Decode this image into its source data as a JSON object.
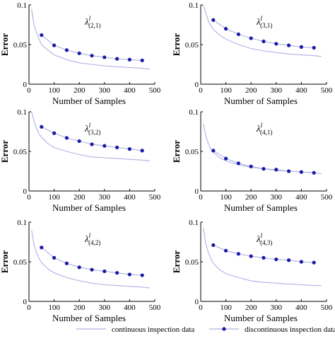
{
  "chart_data": [
    {
      "type": "line",
      "title": "λ^l(2,1)",
      "title_main": "λ",
      "title_sup": "l",
      "title_sub": "(2,1)",
      "xlabel": "Number of Samples",
      "ylabel": "Error",
      "xlim": [
        0,
        500
      ],
      "ylim": [
        0,
        0.1
      ],
      "x_ticks": [
        "0",
        "100",
        "200",
        "300",
        "400",
        "500"
      ],
      "y_ticks": [
        "0",
        "0.05",
        "0.1"
      ],
      "series": [
        {
          "name": "continuous inspection data",
          "x": [
            10,
            20,
            30,
            40,
            50,
            75,
            100,
            150,
            200,
            250,
            300,
            350,
            400,
            450,
            480
          ],
          "y": [
            0.095,
            0.075,
            0.065,
            0.057,
            0.05,
            0.043,
            0.037,
            0.031,
            0.027,
            0.025,
            0.023,
            0.022,
            0.021,
            0.02,
            0.019
          ]
        },
        {
          "name": "discontinuous inspection data",
          "x": [
            50,
            100,
            150,
            200,
            250,
            300,
            350,
            400,
            450
          ],
          "y": [
            0.062,
            0.049,
            0.043,
            0.039,
            0.036,
            0.034,
            0.032,
            0.031,
            0.03
          ]
        }
      ]
    },
    {
      "type": "line",
      "title": "λ^l(3,1)",
      "title_main": "λ",
      "title_sup": "l",
      "title_sub": "(3,1)",
      "xlabel": "Number of Samples",
      "ylabel": "Error",
      "xlim": [
        0,
        500
      ],
      "ylim": [
        0,
        0.1
      ],
      "x_ticks": [
        "0",
        "100",
        "200",
        "300",
        "400",
        "500"
      ],
      "y_ticks": [
        "0",
        "0.05",
        "0.1"
      ],
      "series": [
        {
          "name": "continuous inspection data",
          "x": [
            10,
            20,
            30,
            40,
            50,
            75,
            100,
            150,
            200,
            250,
            300,
            350,
            400,
            450,
            480
          ],
          "y": [
            0.1,
            0.09,
            0.08,
            0.074,
            0.069,
            0.062,
            0.057,
            0.05,
            0.045,
            0.042,
            0.04,
            0.038,
            0.037,
            0.036,
            0.035
          ]
        },
        {
          "name": "discontinuous inspection data",
          "x": [
            50,
            100,
            150,
            200,
            250,
            300,
            350,
            400,
            450
          ],
          "y": [
            0.081,
            0.07,
            0.063,
            0.058,
            0.054,
            0.051,
            0.049,
            0.047,
            0.046
          ]
        }
      ]
    },
    {
      "type": "line",
      "title": "λ^l(3,2)",
      "title_main": "λ",
      "title_sup": "l",
      "title_sub": "(3,2)",
      "xlabel": "Number of Samples",
      "ylabel": "Error",
      "xlim": [
        0,
        500
      ],
      "ylim": [
        0,
        0.1
      ],
      "x_ticks": [
        "0",
        "100",
        "200",
        "300",
        "400",
        "500"
      ],
      "y_ticks": [
        "0",
        "0.05",
        "0.1"
      ],
      "series": [
        {
          "name": "continuous inspection data",
          "x": [
            10,
            20,
            30,
            40,
            50,
            75,
            100,
            150,
            200,
            250,
            300,
            350,
            400,
            450,
            480
          ],
          "y": [
            0.1,
            0.088,
            0.079,
            0.072,
            0.068,
            0.06,
            0.055,
            0.05,
            0.046,
            0.043,
            0.042,
            0.041,
            0.04,
            0.039,
            0.038
          ]
        },
        {
          "name": "discontinuous inspection data",
          "x": [
            50,
            100,
            150,
            200,
            250,
            300,
            350,
            400,
            450
          ],
          "y": [
            0.081,
            0.073,
            0.067,
            0.063,
            0.059,
            0.057,
            0.055,
            0.053,
            0.051
          ]
        }
      ]
    },
    {
      "type": "line",
      "title": "λ^l(4,1)",
      "title_main": "λ",
      "title_sup": "l",
      "title_sub": "(4,1)",
      "xlabel": "Number of Samples",
      "ylabel": "Error",
      "xlim": [
        0,
        500
      ],
      "ylim": [
        0,
        0.1
      ],
      "x_ticks": [
        "0",
        "100",
        "200",
        "300",
        "400",
        "500"
      ],
      "y_ticks": [
        "0",
        "0.05",
        "0.1"
      ],
      "series": [
        {
          "name": "continuous inspection data",
          "x": [
            10,
            20,
            30,
            40,
            50,
            75,
            100,
            150,
            200,
            250,
            300,
            350,
            400,
            450,
            480
          ],
          "y": [
            0.085,
            0.07,
            0.06,
            0.053,
            0.049,
            0.042,
            0.038,
            0.033,
            0.03,
            0.028,
            0.026,
            0.025,
            0.024,
            0.023,
            0.022
          ]
        },
        {
          "name": "discontinuous inspection data",
          "x": [
            50,
            100,
            150,
            200,
            250,
            300,
            350,
            400,
            450
          ],
          "y": [
            0.051,
            0.041,
            0.035,
            0.031,
            0.028,
            0.027,
            0.025,
            0.024,
            0.023
          ]
        }
      ]
    },
    {
      "type": "line",
      "title": "λ^l(4,2)",
      "title_main": "λ",
      "title_sup": "l",
      "title_sub": "(4,2)",
      "xlabel": "Number of Samples",
      "ylabel": "Error",
      "xlim": [
        0,
        500
      ],
      "ylim": [
        0,
        0.1
      ],
      "x_ticks": [
        "0",
        "100",
        "200",
        "300",
        "400",
        "500"
      ],
      "y_ticks": [
        "0",
        "0.05",
        "0.1"
      ],
      "series": [
        {
          "name": "continuous inspection data",
          "x": [
            10,
            20,
            30,
            40,
            50,
            75,
            100,
            150,
            200,
            250,
            300,
            350,
            400,
            450,
            480
          ],
          "y": [
            0.09,
            0.072,
            0.061,
            0.054,
            0.049,
            0.041,
            0.036,
            0.03,
            0.026,
            0.023,
            0.021,
            0.02,
            0.019,
            0.018,
            0.017
          ]
        },
        {
          "name": "discontinuous inspection data",
          "x": [
            50,
            100,
            150,
            200,
            250,
            300,
            350,
            400,
            450
          ],
          "y": [
            0.068,
            0.055,
            0.048,
            0.043,
            0.04,
            0.038,
            0.036,
            0.034,
            0.033
          ]
        }
      ]
    },
    {
      "type": "line",
      "title": "λ^l(4,3)",
      "title_main": "λ",
      "title_sup": "l",
      "title_sub": "(4,3)",
      "xlabel": "Number of Samples",
      "ylabel": "Error",
      "xlim": [
        0,
        500
      ],
      "ylim": [
        0,
        0.1
      ],
      "x_ticks": [
        "0",
        "100",
        "200",
        "300",
        "400",
        "500"
      ],
      "y_ticks": [
        "0",
        "0.05",
        "0.1"
      ],
      "series": [
        {
          "name": "continuous inspection data",
          "x": [
            10,
            20,
            30,
            40,
            50,
            75,
            100,
            150,
            200,
            250,
            300,
            350,
            400,
            450,
            480
          ],
          "y": [
            0.093,
            0.073,
            0.062,
            0.054,
            0.048,
            0.04,
            0.035,
            0.03,
            0.026,
            0.024,
            0.023,
            0.022,
            0.021,
            0.02,
            0.02
          ]
        },
        {
          "name": "discontinuous inspection data",
          "x": [
            50,
            100,
            150,
            200,
            250,
            300,
            350,
            400,
            450
          ],
          "y": [
            0.071,
            0.064,
            0.06,
            0.057,
            0.055,
            0.053,
            0.052,
            0.05,
            0.049
          ]
        }
      ]
    }
  ],
  "legend": {
    "entries": [
      {
        "label": "continuous inspection data",
        "style": "line"
      },
      {
        "label": "discontinuous inspection data",
        "style": "line-marker"
      }
    ],
    "placement": "bottom-center"
  },
  "colors": {
    "continuous_line": "#b0b0e4",
    "discontinuous_line": "#b0b0e4",
    "marker": "#1a1aa6",
    "axis": "#000000"
  }
}
